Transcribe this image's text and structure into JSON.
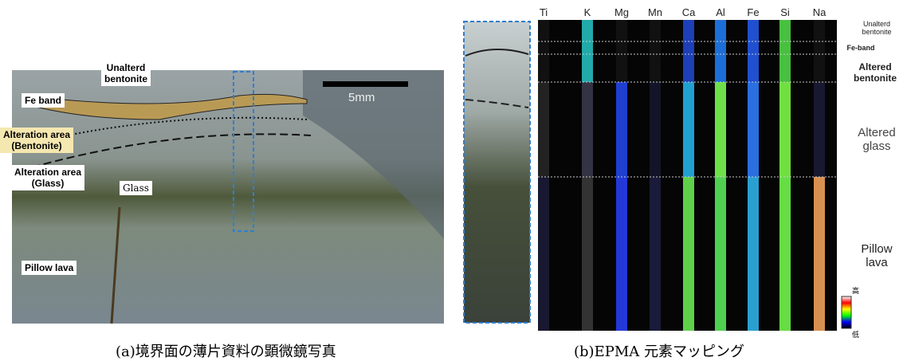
{
  "panel_a": {
    "labels": {
      "unaltered_bentonite": [
        "Unalterd",
        "bentonite"
      ],
      "fe_band": "Fe band",
      "scale": "5mm",
      "alteration_bentonite": [
        "Alteration area",
        "(Bentonite)"
      ],
      "alteration_glass": [
        "Alteration area",
        "(Glass)"
      ],
      "glass": "Glass",
      "pillow_lava": "Pillow lava"
    },
    "caption": "(a)境界面の薄片資料の顕微鏡写真"
  },
  "panel_b": {
    "elements": [
      "Ti",
      "K",
      "Mg",
      "Mn",
      "Ca",
      "Al",
      "Fe",
      "Si",
      "Na"
    ],
    "zones": {
      "unaltered_bentonite": [
        "Unalterd",
        "bentonite"
      ],
      "fe_band": "Fe-band",
      "altered_bentonite": [
        "Altered",
        "bentonite"
      ],
      "altered_glass": [
        "Altered",
        "glass"
      ],
      "pillow_lava": [
        "Pillow",
        "lava"
      ]
    },
    "legend": {
      "high": "高",
      "low": "低"
    },
    "caption": "(b)EPMA 元素マッピング"
  }
}
